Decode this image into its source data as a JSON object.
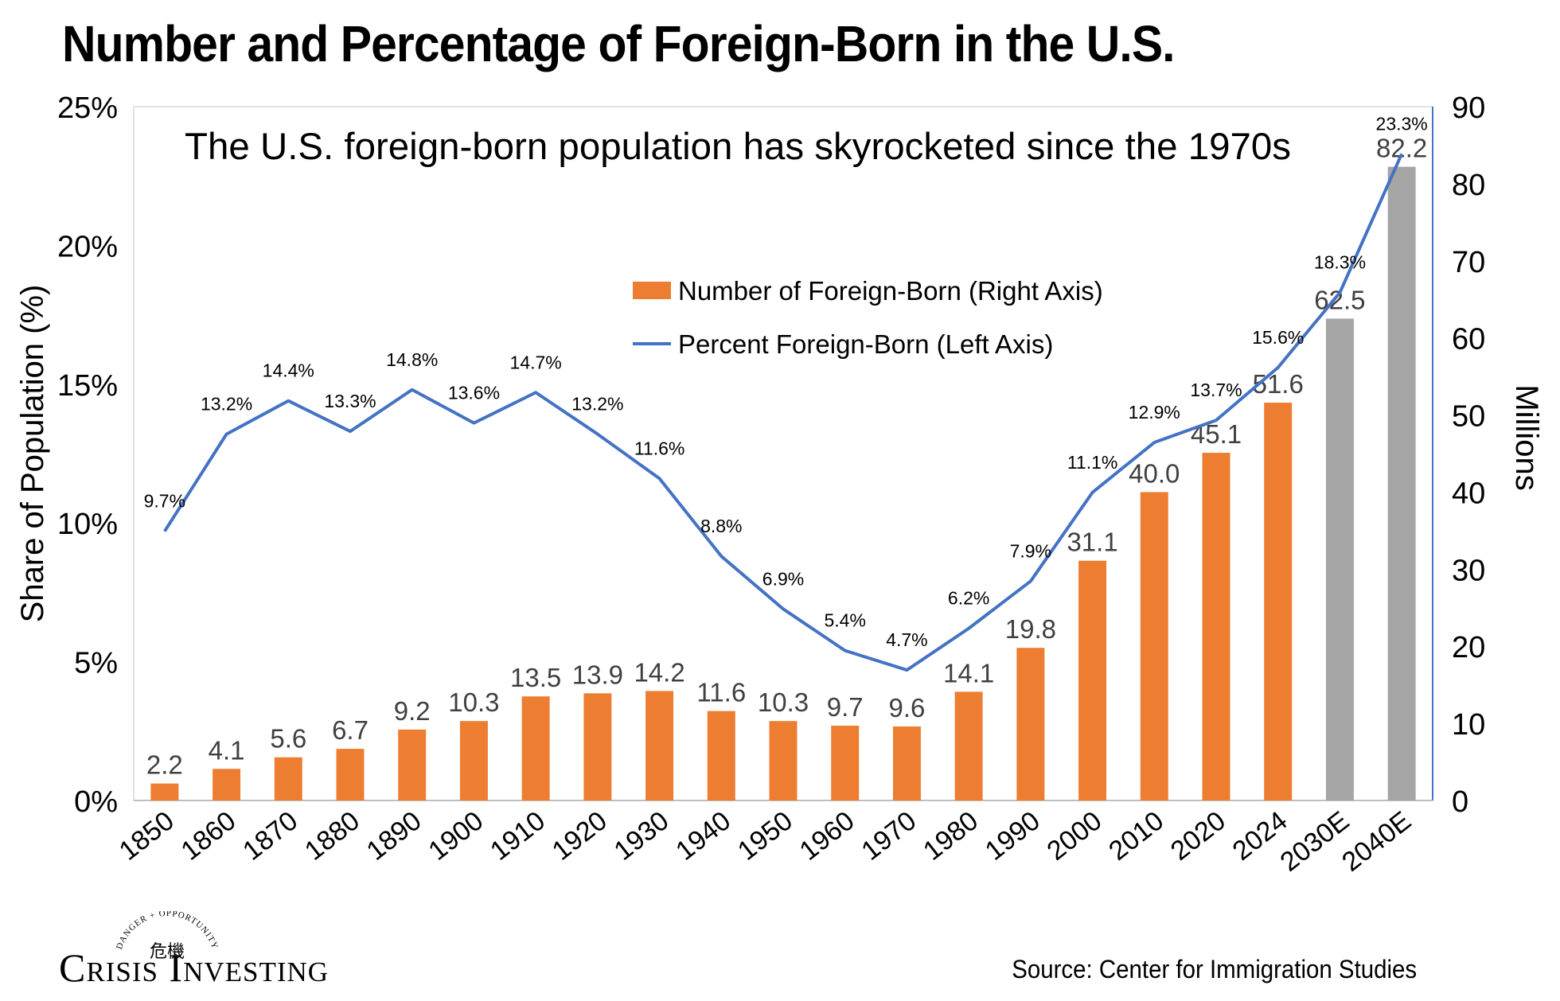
{
  "chart_title": "Number and Percentage of Foreign-Born in the U.S.",
  "source_note": "Source: Center for Immigration Studies",
  "logo": {
    "wordmark": "Crisis Investing",
    "emblem_text": "DANGER + OPPORTUNITY",
    "emblem_glyphs": "危機"
  },
  "chart_data": {
    "type": "bar",
    "subtitle": "The U.S. foreign-born population has skyrocketed since the 1970s",
    "categories": [
      "1850",
      "1860",
      "1870",
      "1880",
      "1890",
      "1900",
      "1910",
      "1920",
      "1930",
      "1940",
      "1950",
      "1960",
      "1970",
      "1980",
      "1990",
      "2000",
      "2010",
      "2020",
      "2024",
      "2030E",
      "2040E"
    ],
    "series": [
      {
        "name": "Number of Foreign-Born (Right Axis)",
        "kind": "bar",
        "axis": "right",
        "color": "#ED7D31",
        "projection_color": "#A5A5A5",
        "values": [
          2.2,
          4.1,
          5.6,
          6.7,
          9.2,
          10.3,
          13.5,
          13.9,
          14.2,
          11.6,
          10.3,
          9.7,
          9.6,
          14.1,
          19.8,
          31.1,
          40.0,
          45.1,
          51.6,
          62.5,
          82.2
        ],
        "labels": [
          "2.2",
          "4.1",
          "5.6",
          "6.7",
          "9.2",
          "10.3",
          "13.5",
          "13.9",
          "14.2",
          "11.6",
          "10.3",
          "9.7",
          "9.6",
          "14.1",
          "19.8",
          "31.1",
          "40.0",
          "45.1",
          "51.6",
          "62.5",
          "82.2"
        ]
      },
      {
        "name": "Percent Foreign-Born (Left Axis)",
        "kind": "line",
        "axis": "left",
        "color": "#4472C4",
        "values": [
          9.7,
          13.2,
          14.4,
          13.3,
          14.8,
          13.6,
          14.7,
          13.2,
          11.6,
          8.8,
          6.9,
          5.4,
          4.7,
          6.2,
          7.9,
          11.1,
          12.9,
          13.7,
          15.6,
          18.3,
          23.3
        ],
        "labels": [
          "9.7%",
          "13.2%",
          "14.4%",
          "13.3%",
          "14.8%",
          "13.6%",
          "14.7%",
          "13.2%",
          "11.6%",
          "8.8%",
          "6.9%",
          "5.4%",
          "4.7%",
          "6.2%",
          "7.9%",
          "11.1%",
          "12.9%",
          "13.7%",
          "15.6%",
          "18.3%",
          "23.3%"
        ]
      }
    ],
    "projected_categories": [
      "2030E",
      "2040E"
    ],
    "ylabel_left": "Share of Population (%)",
    "ylabel_right": "Millions",
    "ylim_left": [
      0,
      25
    ],
    "ylim_right": [
      0,
      90
    ],
    "yticks_left": [
      "0%",
      "5%",
      "10%",
      "15%",
      "20%",
      "25%"
    ],
    "yticks_right": [
      "0",
      "10",
      "20",
      "30",
      "40",
      "50",
      "60",
      "70",
      "80",
      "90"
    ],
    "legend_position": "upper-center",
    "grid": false
  }
}
